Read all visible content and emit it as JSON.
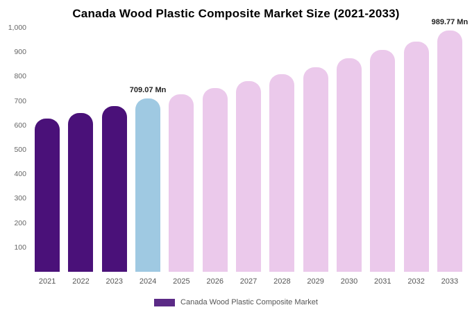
{
  "chart_data": {
    "type": "bar",
    "title": "Canada Wood Plastic Composite Market Size (2021-2033)",
    "xlabel": "",
    "ylabel": "",
    "ylim": [
      0,
      1000
    ],
    "ytick_step": 100,
    "grid": false,
    "categories": [
      "2021",
      "2022",
      "2023",
      "2024",
      "2025",
      "2026",
      "2027",
      "2028",
      "2029",
      "2030",
      "2031",
      "2032",
      "2033"
    ],
    "values": [
      628,
      652,
      678,
      709.07,
      727,
      754,
      782,
      811,
      838,
      874,
      908,
      944,
      989.77
    ],
    "data_labels": [
      "",
      "",
      "",
      "709.07 Mn",
      "",
      "",
      "",
      "",
      "",
      "",
      "",
      "",
      "989.77 Mn"
    ],
    "bar_colors": [
      "#4a1179",
      "#4a1179",
      "#4a1179",
      "#9fc9e2",
      "#ebc9eb",
      "#ebc9eb",
      "#ebc9eb",
      "#ebc9eb",
      "#ebc9eb",
      "#ebc9eb",
      "#ebc9eb",
      "#ebc9eb",
      "#ebc9eb"
    ],
    "colors": {
      "historical": "#4a1179",
      "highlight": "#9fc9e2",
      "forecast": "#ebc9eb"
    },
    "legend": [
      {
        "label": "Canada Wood Plastic Composite Market",
        "color": "#5b2a86"
      }
    ],
    "legend_position": "bottom"
  }
}
